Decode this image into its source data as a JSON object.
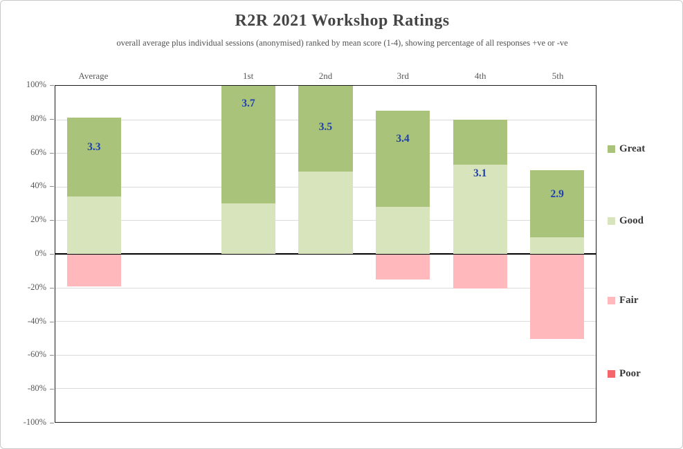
{
  "page": {
    "title": "R2R 2021 Workshop Ratings",
    "subtitle": "overall average plus individual  sessions (anonymised) ranked by mean score (1-4), showing percentage of all responses +ve or -ve"
  },
  "chart_data": {
    "type": "bar",
    "stacked": true,
    "orientation": "vertical",
    "title": "R2R 2021 Workshop Ratings",
    "subtitle": "overall average plus individual  sessions (anonymised) ranked by mean score (1-4), showing percentage of all responses +ve or -ve",
    "categories": [
      "Average",
      "",
      "1st",
      "2nd",
      "3rd",
      "4th",
      "5th"
    ],
    "series": [
      {
        "name": "Great",
        "color": "#A9C47A",
        "values": [
          47,
          null,
          70,
          51,
          57,
          27,
          40
        ]
      },
      {
        "name": "Good",
        "color": "#D8E4BC",
        "values": [
          34,
          null,
          30,
          49,
          28,
          53,
          10
        ]
      },
      {
        "name": "Fair",
        "color": "#FFB8BB",
        "values": [
          -19,
          null,
          0,
          0,
          -15,
          -20,
          -50
        ]
      },
      {
        "name": "Poor",
        "color": "#F4666C",
        "values": [
          0,
          null,
          0,
          0,
          0,
          0,
          0
        ]
      }
    ],
    "value_labels": [
      {
        "text": "3.3",
        "y_pct": 63
      },
      null,
      {
        "text": "3.7",
        "y_pct": 89
      },
      {
        "text": "3.5",
        "y_pct": 75
      },
      {
        "text": "3.4",
        "y_pct": 68
      },
      {
        "text": "3.1",
        "y_pct": 47.5
      },
      {
        "text": "2.9",
        "y_pct": 35
      }
    ],
    "value_label_color": "#1F3FAD",
    "y_ticks": [
      "100%",
      "80%",
      "60%",
      "40%",
      "20%",
      "0%",
      "-20%",
      "-40%",
      "-60%",
      "-80%",
      "-100%"
    ],
    "ylim": [
      -100,
      100
    ],
    "grid": true,
    "legend_position": "right",
    "legend_entries": [
      "Great",
      "Good",
      "Fair",
      "Poor"
    ]
  }
}
